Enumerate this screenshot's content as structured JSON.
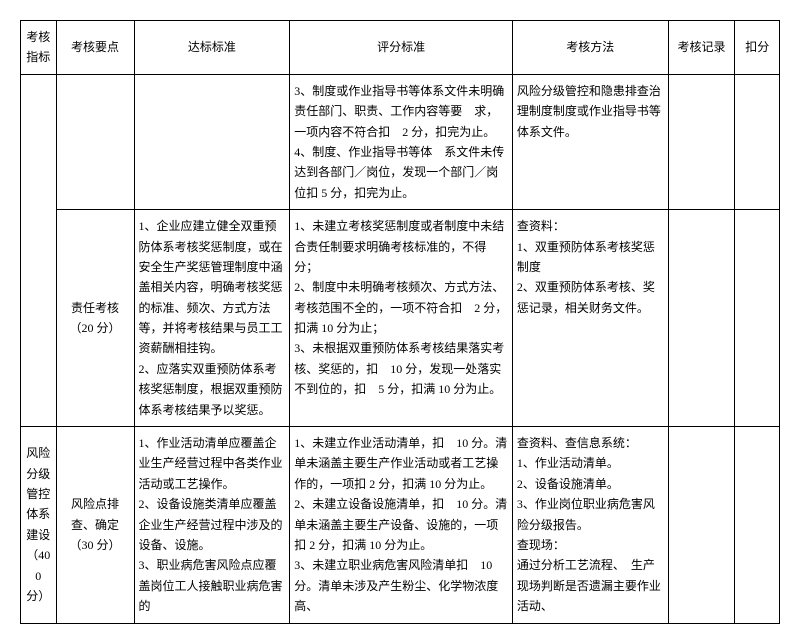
{
  "headers": [
    "考核指标",
    "考核要点",
    "达标标准",
    "评分标准",
    "考核方法",
    "考核记录",
    "扣分"
  ],
  "rows": [
    {
      "c0": "",
      "c1": "",
      "c2": "",
      "c3": "3、制度或作业指导书等体系文件未明确责任部门、职责、工作内容等要　求，一项内容不符合扣　2 分，扣完为止。\n4、制度、作业指导书等体　系文件未传达到各部门／岗位，发现一个部门／岗位扣 5 分，扣完为止。",
      "c4": "风险分级管控和隐患排查治理制度制度或作业指导书等体系文件。",
      "c5": "",
      "c6": ""
    },
    {
      "c0": "",
      "c1": "责任考核（20 分）",
      "c2": "1、企业应建立健全双重预防体系考核奖惩制度，或在安全生产奖惩管理制度中涵盖相关内容，明确考核奖惩的标准、频次、方式方法等，并将考核结果与员工工资薪酬相挂钩。\n2、应落实双重预防体系考核奖惩制度，根据双重预防体系考核结果予以奖惩。",
      "c3": "1、未建立考核奖惩制度或者制度中未结合责任制要求明确考核标准的，不得分；\n2、制度中未明确考核频次、方式方法、考核范围不全的，一项不符合扣　2 分，扣满 10 分为止；\n3、未根据双重预防体系考核结果落实考核、奖惩的，扣　10 分，发现一处落实不到位的，扣　5 分，扣满 10 分为止。",
      "c4": "查资料：\n1、双重预防体系考核奖惩制度\n2、双重预防体系考核、奖惩记录，相关财务文件。",
      "c5": "",
      "c6": ""
    },
    {
      "c0": "风险分级管控体系建设（40 0 分）",
      "c1": "风险点排查、确定（30 分）",
      "c2": "1、作业活动清单应覆盖企业生产经营过程中各类作业活动或工艺操作。\n2、设备设施类清单应覆盖企业生产经营过程中涉及的设备、设施。\n3、职业病危害风险点应覆盖岗位工人接触职业病危害的",
      "c3": "1、未建立作业活动清单，扣　10 分。清单未涵盖主要生产作业活动或者工艺操作的，一项扣 2 分，扣满 10 分为止。\n2、未建立设备设施清单，扣　10 分。清单未涵盖主要生产设备、设施的，一项扣 2 分，扣满 10 分为止。\n3、未建立职业病危害风险清单扣　10 分。清单未涉及产生粉尘、化学物浓度高、",
      "c4": "查资料、查信息系统：\n1、作业活动清单。\n2、设备设施清单。\n3、作业岗位职业病危害风险分级报告。\n查现场：\n通过分析工艺流程、　生产现场判断是否遗漏主要作业活动、",
      "c5": "",
      "c6": ""
    }
  ]
}
